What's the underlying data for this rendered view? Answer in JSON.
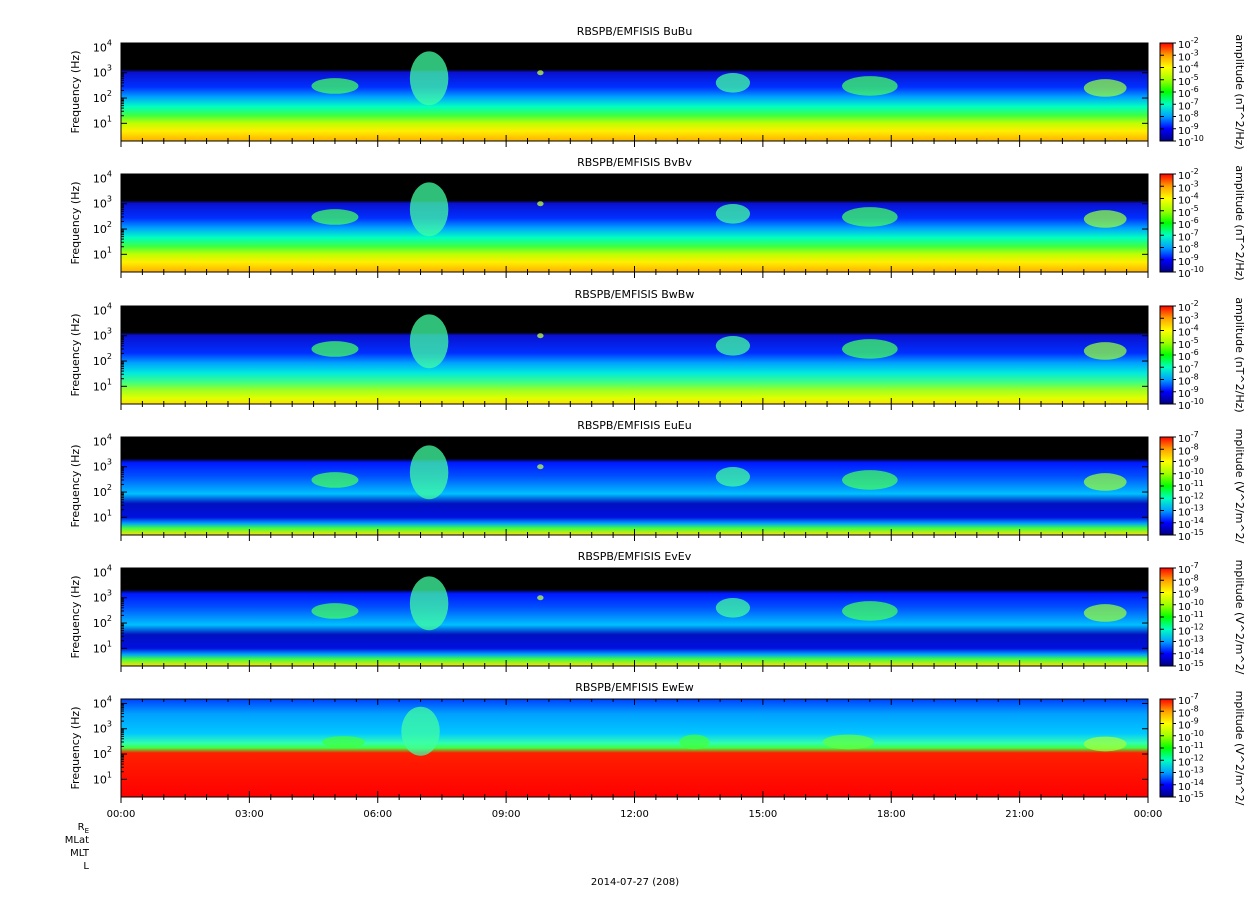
{
  "chart_data": {
    "type": "heatmap",
    "x_tick_labels": [
      "00:00",
      "03:00",
      "06:00",
      "09:00",
      "12:00",
      "15:00",
      "18:00",
      "21:00",
      "00:00"
    ],
    "xlabel": "2014-07-27 (208)",
    "ephemeris_labels": [
      "R",
      "MLat",
      "MLT",
      "L"
    ],
    "ephemeris_subscript": "E",
    "ylabel": "Frequency (Hz)",
    "y_tick_labels": [
      "10",
      "10",
      "10",
      "10"
    ],
    "y_tick_exponents": [
      "1",
      "2",
      "3",
      "4"
    ],
    "panels": [
      {
        "title": "RBSPB/EMFISIS  BuBu",
        "colorbar_label": "amplitude (nT^2/Hz)",
        "cbar_base": "10",
        "cbar_exponents": [
          "-2",
          "-3",
          "-4",
          "-5",
          "-6",
          "-7",
          "-8",
          "-9",
          "-10"
        ],
        "kind": "B"
      },
      {
        "title": "RBSPB/EMFISIS  BvBv",
        "colorbar_label": "amplitude (nT^2/Hz)",
        "cbar_base": "10",
        "cbar_exponents": [
          "-2",
          "-3",
          "-4",
          "-5",
          "-6",
          "-7",
          "-8",
          "-9",
          "-10"
        ],
        "kind": "B"
      },
      {
        "title": "RBSPB/EMFISIS  BwBw",
        "colorbar_label": "amplitude (nT^2/Hz)",
        "cbar_base": "10",
        "cbar_exponents": [
          "-2",
          "-3",
          "-4",
          "-5",
          "-6",
          "-7",
          "-8",
          "-9",
          "-10"
        ],
        "kind": "Bw"
      },
      {
        "title": "RBSPB/EMFISIS  EuEu",
        "colorbar_label": "mplitude (V^2/m^2/",
        "cbar_base": "10",
        "cbar_exponents": [
          "-7",
          "-8",
          "-9",
          "-10",
          "-11",
          "-12",
          "-13",
          "-14",
          "-15"
        ],
        "kind": "E"
      },
      {
        "title": "RBSPB/EMFISIS  EvEv",
        "colorbar_label": "mplitude (V^2/m^2/",
        "cbar_base": "10",
        "cbar_exponents": [
          "-7",
          "-8",
          "-9",
          "-10",
          "-11",
          "-12",
          "-13",
          "-14",
          "-15"
        ],
        "kind": "E"
      },
      {
        "title": "RBSPB/EMFISIS  EwEw",
        "colorbar_label": "mplitude (V^2/m^2/",
        "cbar_base": "10",
        "cbar_exponents": [
          "-7",
          "-8",
          "-9",
          "-10",
          "-11",
          "-12",
          "-13",
          "-14",
          "-15"
        ],
        "kind": "Ew"
      }
    ],
    "x_range_hours": [
      0,
      24
    ],
    "y_range_hz": [
      2,
      15000
    ],
    "y_scale": "log",
    "colormap": [
      "#000080",
      "#0000ff",
      "#00a0ff",
      "#00ffc0",
      "#00ff00",
      "#a0ff00",
      "#ffff00",
      "#ffa000",
      "#ff0000"
    ]
  }
}
